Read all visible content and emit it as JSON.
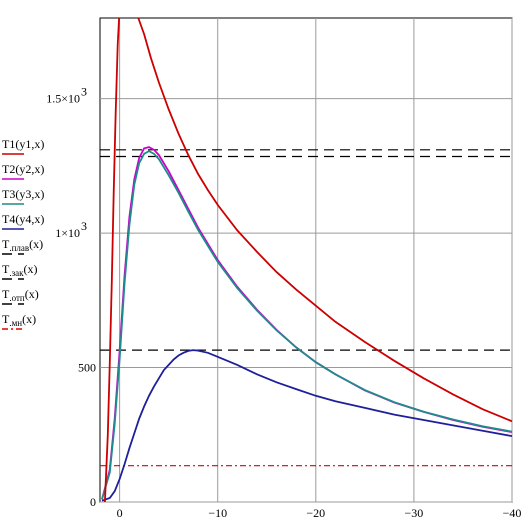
{
  "chart_data": {
    "type": "line",
    "xlim": [
      2,
      -40
    ],
    "ylim": [
      0,
      1800
    ],
    "x_ticks": [
      0,
      -10,
      -20,
      -30,
      -40
    ],
    "x_tick_labels": [
      "0",
      "−10",
      "−20",
      "−30",
      "−40"
    ],
    "y_ticks": [
      0,
      500,
      1000,
      1500
    ],
    "y_tick_labels": [
      "0",
      "500",
      "1×10",
      "1.5×10"
    ],
    "y_tick_exponents": [
      "",
      "",
      "3",
      "3"
    ],
    "grid": true,
    "legend_placement": "left",
    "series": [
      {
        "name": "T1(y1,x)",
        "color": "#cc0000",
        "x": [
          -1.9,
          -2.5,
          -3.2,
          -4,
          -5,
          -6,
          -7,
          -8,
          -9,
          -10,
          -12,
          -14,
          -16,
          -18,
          -20,
          -22,
          -25,
          -28,
          -31,
          -34,
          -37,
          -40
        ],
        "values": [
          1800,
          1740,
          1650,
          1560,
          1460,
          1370,
          1290,
          1220,
          1160,
          1105,
          1010,
          930,
          855,
          790,
          730,
          670,
          595,
          525,
          460,
          400,
          345,
          300
        ]
      },
      {
        "name": "T2(y2,x)",
        "color": "#cc00cc",
        "x": [
          1.8,
          1,
          0.5,
          0,
          -0.5,
          -1,
          -1.5,
          -2,
          -2.5,
          -3,
          -3.5,
          -4,
          -5,
          -6,
          -7,
          -8,
          -10,
          -12,
          -14,
          -16,
          -18,
          -20,
          -22,
          -25,
          -28,
          -31,
          -34,
          -37,
          -40
        ],
        "values": [
          10,
          120,
          310,
          560,
          840,
          1060,
          1200,
          1280,
          1315,
          1320,
          1310,
          1290,
          1230,
          1160,
          1090,
          1020,
          900,
          800,
          715,
          640,
          575,
          520,
          475,
          415,
          370,
          335,
          305,
          280,
          260
        ]
      },
      {
        "name": "T3(y3,x)",
        "color": "#1e8c8c",
        "x": [
          1.8,
          1,
          0.5,
          0,
          -0.5,
          -1,
          -1.5,
          -2,
          -2.5,
          -3,
          -3.5,
          -4,
          -5,
          -6,
          -7,
          -8,
          -10,
          -12,
          -14,
          -16,
          -18,
          -20,
          -22,
          -25,
          -28,
          -31,
          -34,
          -37,
          -40
        ],
        "values": [
          10,
          110,
          290,
          530,
          810,
          1030,
          1180,
          1260,
          1295,
          1305,
          1295,
          1275,
          1215,
          1150,
          1080,
          1012,
          893,
          795,
          712,
          638,
          575,
          520,
          475,
          416,
          371,
          336,
          307,
          282,
          262
        ]
      },
      {
        "name": "T4(y4,x)",
        "color": "#1f1f99",
        "x": [
          1.8,
          1,
          0.5,
          0,
          -0.5,
          -1,
          -1.5,
          -2,
          -2.5,
          -3,
          -3.5,
          -4,
          -4.5,
          -5,
          -5.5,
          -6,
          -6.5,
          -7,
          -7.5,
          -8,
          -9,
          -10,
          -12,
          -14,
          -16,
          -18,
          -20,
          -22,
          -25,
          -28,
          -31,
          -34,
          -37,
          -40
        ],
        "values": [
          5,
          15,
          40,
          85,
          140,
          200,
          255,
          310,
          355,
          395,
          430,
          460,
          490,
          510,
          530,
          545,
          555,
          562,
          565,
          563,
          555,
          540,
          510,
          475,
          445,
          420,
          395,
          375,
          350,
          325,
          305,
          285,
          265,
          245
        ]
      },
      {
        "name": "T_плав(x)",
        "color": "#000000",
        "dash": "10,6",
        "x": [
          2,
          -40
        ],
        "values": [
          1310,
          1310
        ]
      },
      {
        "name": "T_зак(x)",
        "color": "#000000",
        "dash": "10,6",
        "x": [
          2,
          -40
        ],
        "values": [
          1285,
          1285
        ]
      },
      {
        "name": "T_отп(x)",
        "color": "#000000",
        "dash": "10,6",
        "x": [
          2,
          -40
        ],
        "values": [
          565,
          565
        ]
      },
      {
        "name": "T_мн(x)",
        "color": "#dd0000",
        "dash": "6,3,2,3",
        "x": [
          2,
          -40
        ],
        "values": [
          135,
          135
        ]
      }
    ],
    "extra_curves": [
      {
        "color": "#cc0000",
        "x": [
          1.5,
          1.2,
          1.0,
          0.8,
          0.6,
          0.4,
          0.2,
          0.05
        ],
        "values": [
          0,
          250,
          520,
          820,
          1150,
          1450,
          1700,
          1800
        ]
      }
    ],
    "legend": [
      {
        "main": "T1(y1,x)",
        "sub": "",
        "tail": "",
        "color": "#cc0000",
        "dash": ""
      },
      {
        "main": "T2(y2,x)",
        "sub": "",
        "tail": "",
        "color": "#cc00cc",
        "dash": ""
      },
      {
        "main": "T3(y3,x)",
        "sub": "",
        "tail": "",
        "color": "#1e8c8c",
        "dash": ""
      },
      {
        "main": "T4(y4,x)",
        "sub": "",
        "tail": "",
        "color": "#1f1f99",
        "dash": ""
      },
      {
        "main": "T",
        "sub": ".плав",
        "tail": "(x)",
        "color": "#000000",
        "dash": "10,6"
      },
      {
        "main": "T",
        "sub": ".зак",
        "tail": "(x)",
        "color": "#000000",
        "dash": "10,6"
      },
      {
        "main": "T",
        "sub": ".отп",
        "tail": "(x)",
        "color": "#000000",
        "dash": "10,6"
      },
      {
        "main": "T",
        "sub": ".мн",
        "tail": "(x)",
        "color": "#dd0000",
        "dash": "6,3,2,3"
      }
    ]
  }
}
